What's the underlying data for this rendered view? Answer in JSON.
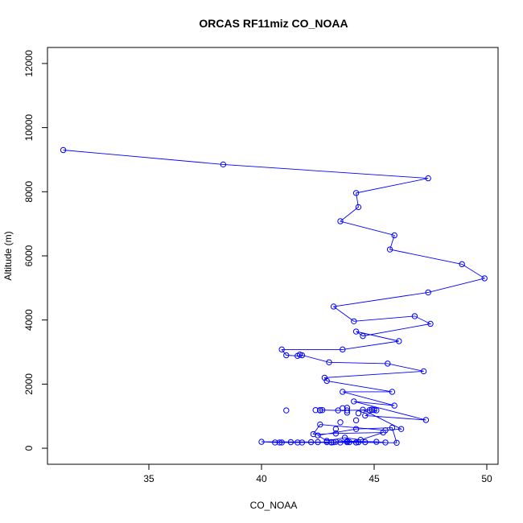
{
  "chart_data": {
    "type": "line",
    "title": "ORCAS RF11miz CO_NOAA",
    "xlabel": "CO_NOAA",
    "ylabel": "Altitude (m)",
    "xlim": [
      30.5,
      50.5
    ],
    "ylim": [
      -500,
      12500
    ],
    "x_ticks": [
      35,
      40,
      45,
      50
    ],
    "y_ticks": [
      0,
      2000,
      4000,
      6000,
      8000,
      10000,
      12000
    ],
    "series": [
      {
        "color": "#0000ff",
        "marker": "open-circle",
        "x": [
          31.2,
          38.3,
          47.4,
          44.2,
          44.3,
          43.5,
          45.9,
          45.7,
          48.9,
          49.9,
          47.4,
          43.2,
          44.1,
          46.8,
          47.5,
          44.5,
          44.2,
          46.1,
          43.6,
          40.9,
          41.1,
          41.6,
          41.8,
          41.7,
          43.0,
          45.6,
          47.2,
          42.8,
          42.9,
          45.8,
          43.6,
          45.9,
          44.1,
          47.3,
          44.6,
          45.1,
          44.9,
          43.8,
          42.7,
          42.6,
          43.4,
          44.8,
          44.5,
          46.2,
          45.5,
          42.6,
          42.3,
          43.3,
          45.4,
          44.4,
          43.7,
          42.9,
          42.5,
          44.2,
          45.8,
          46.0,
          43.8,
          43.1,
          40.0,
          40.6,
          40.9,
          41.3,
          42.2,
          41.8,
          42.5,
          42.9,
          43.5,
          44.2,
          44.6,
          44.3,
          43.3,
          43.8,
          45.1,
          45.5,
          44.2,
          43.9,
          43.2,
          43.1,
          41.6,
          40.8
        ],
        "y": [
          9300,
          8850,
          8420,
          7960,
          7520,
          7080,
          6640,
          6200,
          5740,
          5300,
          4860,
          4420,
          3960,
          4120,
          3880,
          3500,
          3640,
          3340,
          3080,
          3080,
          2900,
          2880,
          2900,
          2920,
          2680,
          2640,
          2400,
          2200,
          2100,
          1760,
          1760,
          1330,
          1460,
          880,
          1020,
          1180,
          1200,
          1180,
          1190,
          1190,
          1180,
          1190,
          1200,
          600,
          560,
          740,
          440,
          460,
          490,
          260,
          330,
          230,
          400,
          600,
          640,
          170,
          190,
          190,
          200,
          180,
          180,
          190,
          190,
          180,
          190,
          190,
          180,
          180,
          190,
          190,
          200,
          220,
          200,
          180,
          180,
          190,
          190,
          180,
          180,
          180
        ],
        "extra": {
          "x": [
            41.1,
            45.0,
            44.9,
            42.4,
            43.8,
            42.6,
            43.8,
            44.3,
            43.6,
            43.5,
            43.3,
            44.2
          ],
          "y": [
            1180,
            1190,
            1200,
            1190,
            1110,
            1180,
            1260,
            1090,
            1250,
            810,
            600,
            870
          ]
        }
      }
    ],
    "grid": false,
    "legend": "none"
  }
}
